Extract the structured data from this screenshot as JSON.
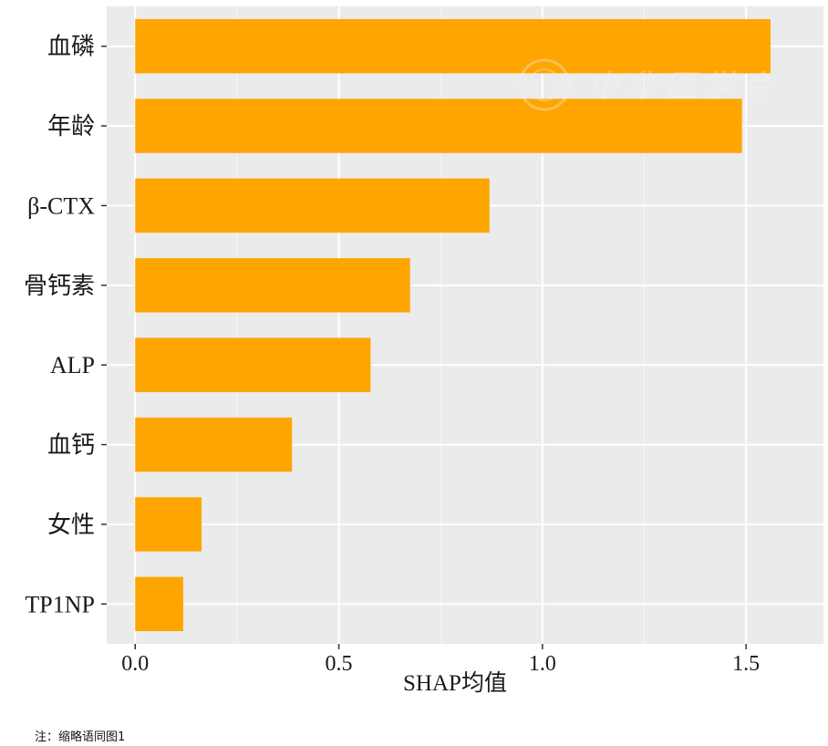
{
  "chart_data": {
    "type": "bar",
    "orientation": "horizontal",
    "categories": [
      "血磷",
      "年龄",
      "β-CTX",
      "骨钙素",
      "ALP",
      "血钙",
      "女性",
      "TP1NP"
    ],
    "values": [
      1.56,
      1.49,
      0.87,
      0.675,
      0.578,
      0.385,
      0.163,
      0.118
    ],
    "xlabel": "SHAP均值",
    "ylabel": "",
    "xlim": [
      -0.07,
      1.69
    ],
    "xticks": [
      0.0,
      0.5,
      1.0,
      1.5
    ],
    "xtick_labels": [
      "0.0",
      "0.5",
      "1.0",
      "1.5"
    ],
    "grid": true,
    "bar_color": "#FFA500",
    "panel_background": "#EBEBEB"
  },
  "note": "注：缩略语同图1",
  "watermark": "中华医学会"
}
